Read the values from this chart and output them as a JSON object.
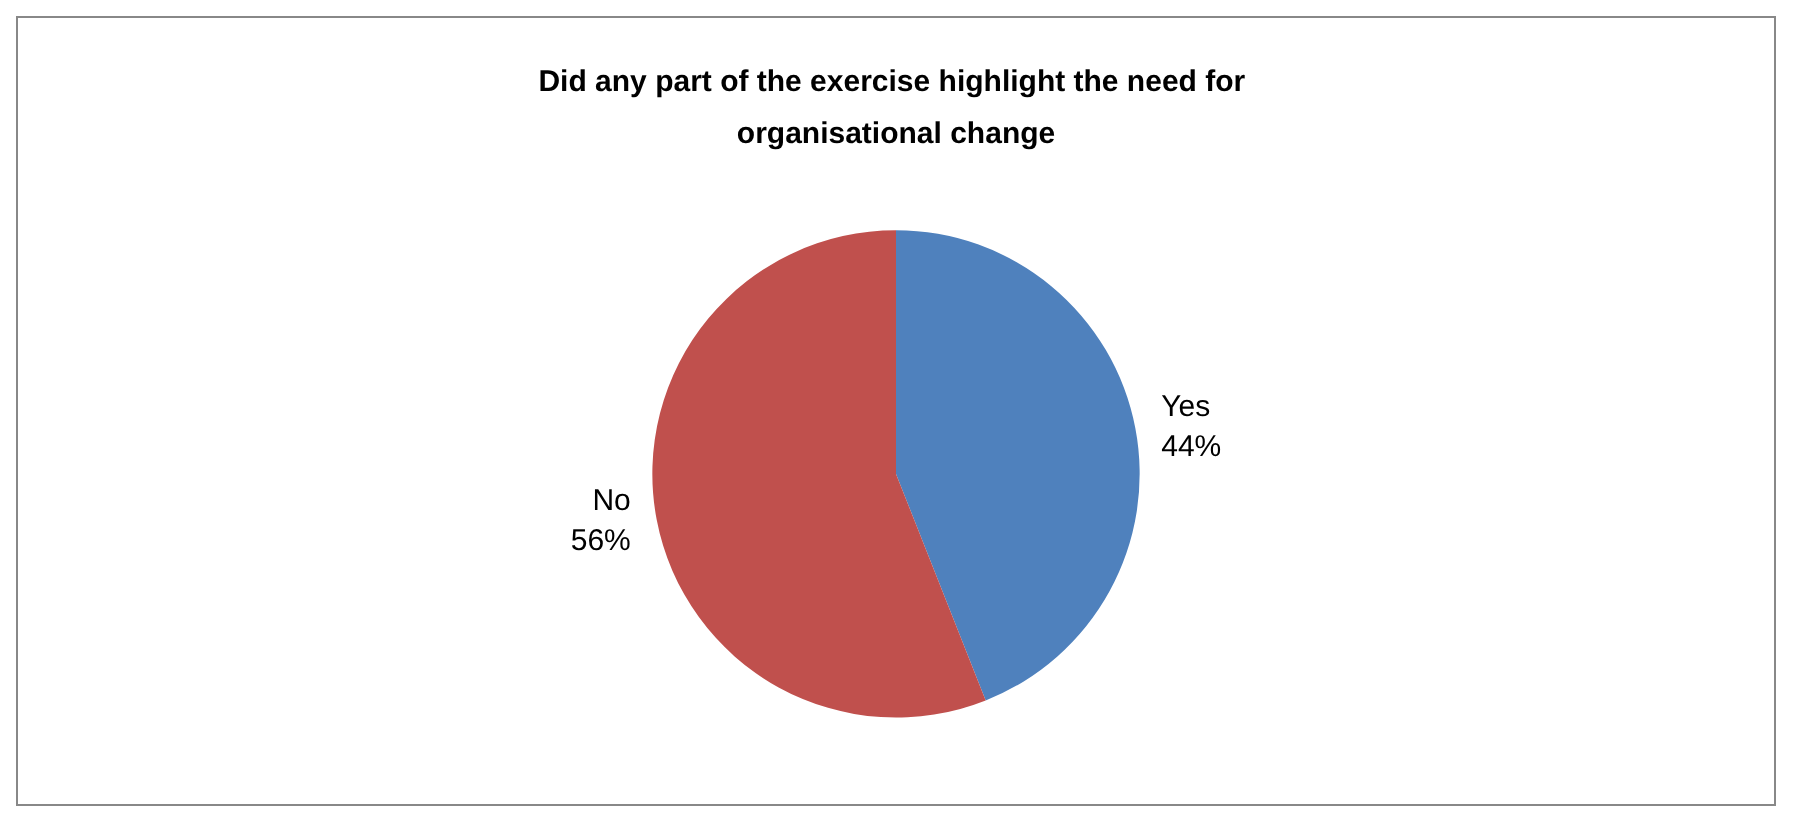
{
  "chart_data": {
    "type": "pie",
    "title": "Did any part of the exercise highlight the need for organisational change",
    "categories": [
      "Yes",
      "No"
    ],
    "values": [
      44,
      56
    ],
    "colors": [
      "#4f81bd",
      "#c0504d"
    ],
    "value_labels": [
      "44%",
      "56%"
    ],
    "legend": false
  }
}
